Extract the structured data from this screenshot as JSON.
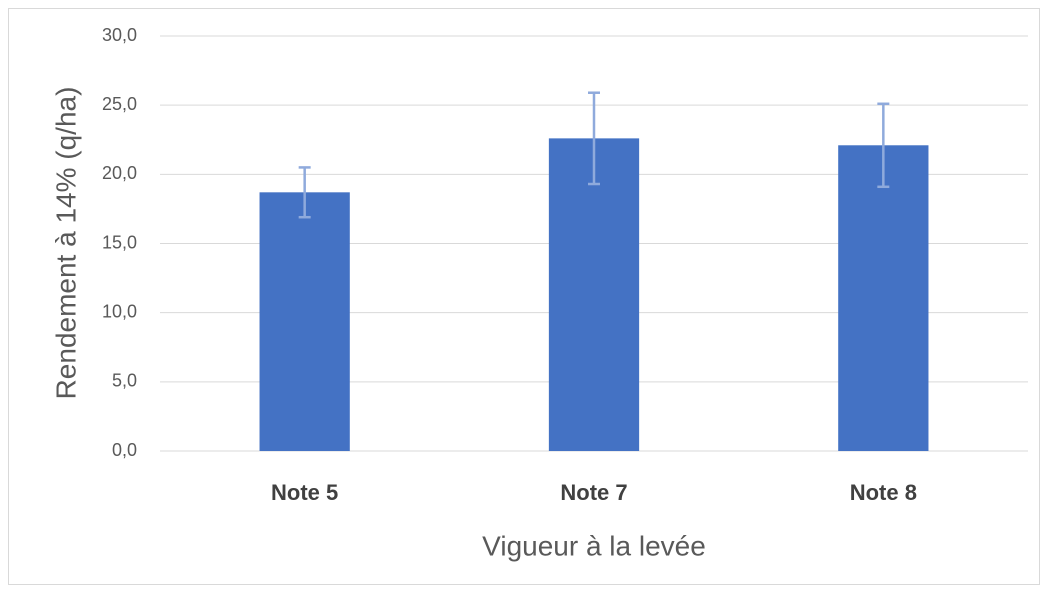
{
  "chart_data": {
    "type": "bar",
    "x_label": "Vigueur à la levée",
    "y_label": "Rendement à 14% (q/ha)",
    "categories": [
      "Note 5",
      "Note 7",
      "Note 8"
    ],
    "values": [
      18.7,
      22.6,
      22.1
    ],
    "errors": [
      1.8,
      3.3,
      3.0
    ],
    "color": "#4472c4",
    "error_color": "#8faadc",
    "ylim": [
      0,
      30
    ],
    "yticks": [
      {
        "value": 0,
        "label": "0,0"
      },
      {
        "value": 5,
        "label": "5,0"
      },
      {
        "value": 10,
        "label": "10,0"
      },
      {
        "value": 15,
        "label": "15,0"
      },
      {
        "value": 20,
        "label": "20,0"
      },
      {
        "value": 25,
        "label": "25,0"
      },
      {
        "value": 30,
        "label": "30,0"
      }
    ],
    "grid": true
  }
}
